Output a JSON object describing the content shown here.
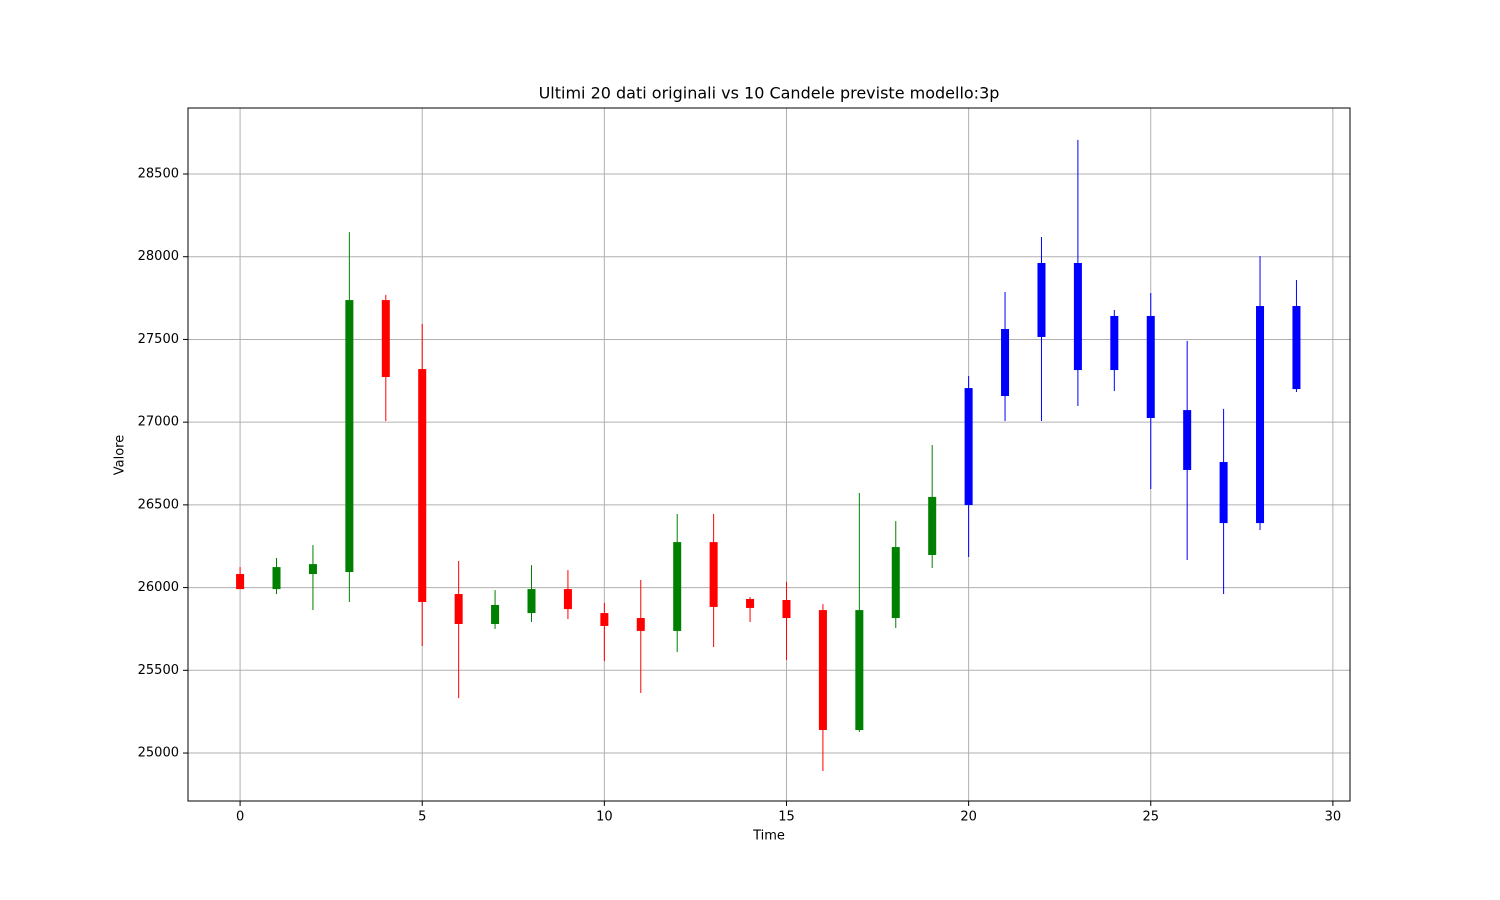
{
  "chart_data": {
    "type": "candlestick",
    "title": "Ultimi 20 dati originali vs 10 Candele previste modello:3p",
    "xlabel": "Time",
    "ylabel": "Valore",
    "xlim": [
      -1.43,
      30.47
    ],
    "ylim": [
      24710,
      28899
    ],
    "xticks": [
      0,
      5,
      10,
      15,
      20,
      25,
      30
    ],
    "yticks": [
      25000,
      25500,
      26000,
      26500,
      27000,
      27500,
      28000,
      28500
    ],
    "grid": true,
    "series": [
      {
        "up_color": "green",
        "down_color": "red",
        "x": [
          0,
          1,
          2,
          3,
          4,
          5,
          6,
          7,
          8,
          9,
          10,
          11,
          12,
          13,
          14,
          15,
          16,
          17,
          18,
          19
        ],
        "open": [
          26082,
          25991,
          26082,
          26094,
          27738,
          27321,
          25961,
          25780,
          25846,
          25991,
          25846,
          25816,
          25738,
          26275,
          25931,
          25925,
          25864,
          25139,
          25816,
          26197
        ],
        "high": [
          26124,
          26179,
          26257,
          28149,
          27769,
          27593,
          26161,
          25985,
          26136,
          26106,
          25907,
          26046,
          26445,
          26445,
          25943,
          26034,
          25900,
          26572,
          26402,
          26862
        ],
        "low": [
          25991,
          25961,
          25864,
          25913,
          27007,
          25647,
          25332,
          25750,
          25792,
          25810,
          25556,
          25363,
          25610,
          25641,
          25792,
          25562,
          24891,
          25127,
          25756,
          26118
        ],
        "close": [
          25991,
          26124,
          26142,
          27738,
          27273,
          25913,
          25780,
          25895,
          25991,
          25870,
          25768,
          25738,
          26275,
          25883,
          25877,
          25816,
          25139,
          25864,
          26245,
          26548
        ]
      },
      {
        "up_color": "blue",
        "down_color": "blue",
        "x": [
          20,
          21,
          22,
          23,
          24,
          25,
          26,
          27,
          28,
          29
        ],
        "open": [
          26499,
          27158,
          27515,
          27962,
          27315,
          27642,
          27073,
          26759,
          26390,
          27702
        ],
        "high": [
          27279,
          27787,
          28119,
          28706,
          27678,
          27781,
          27491,
          27080,
          28004,
          27859
        ],
        "low": [
          26185,
          27007,
          27007,
          27098,
          27188,
          26596,
          26167,
          25961,
          26348,
          27182
        ],
        "close": [
          27206,
          27563,
          27962,
          27315,
          27642,
          27025,
          26711,
          26390,
          27702,
          27200
        ]
      }
    ]
  }
}
